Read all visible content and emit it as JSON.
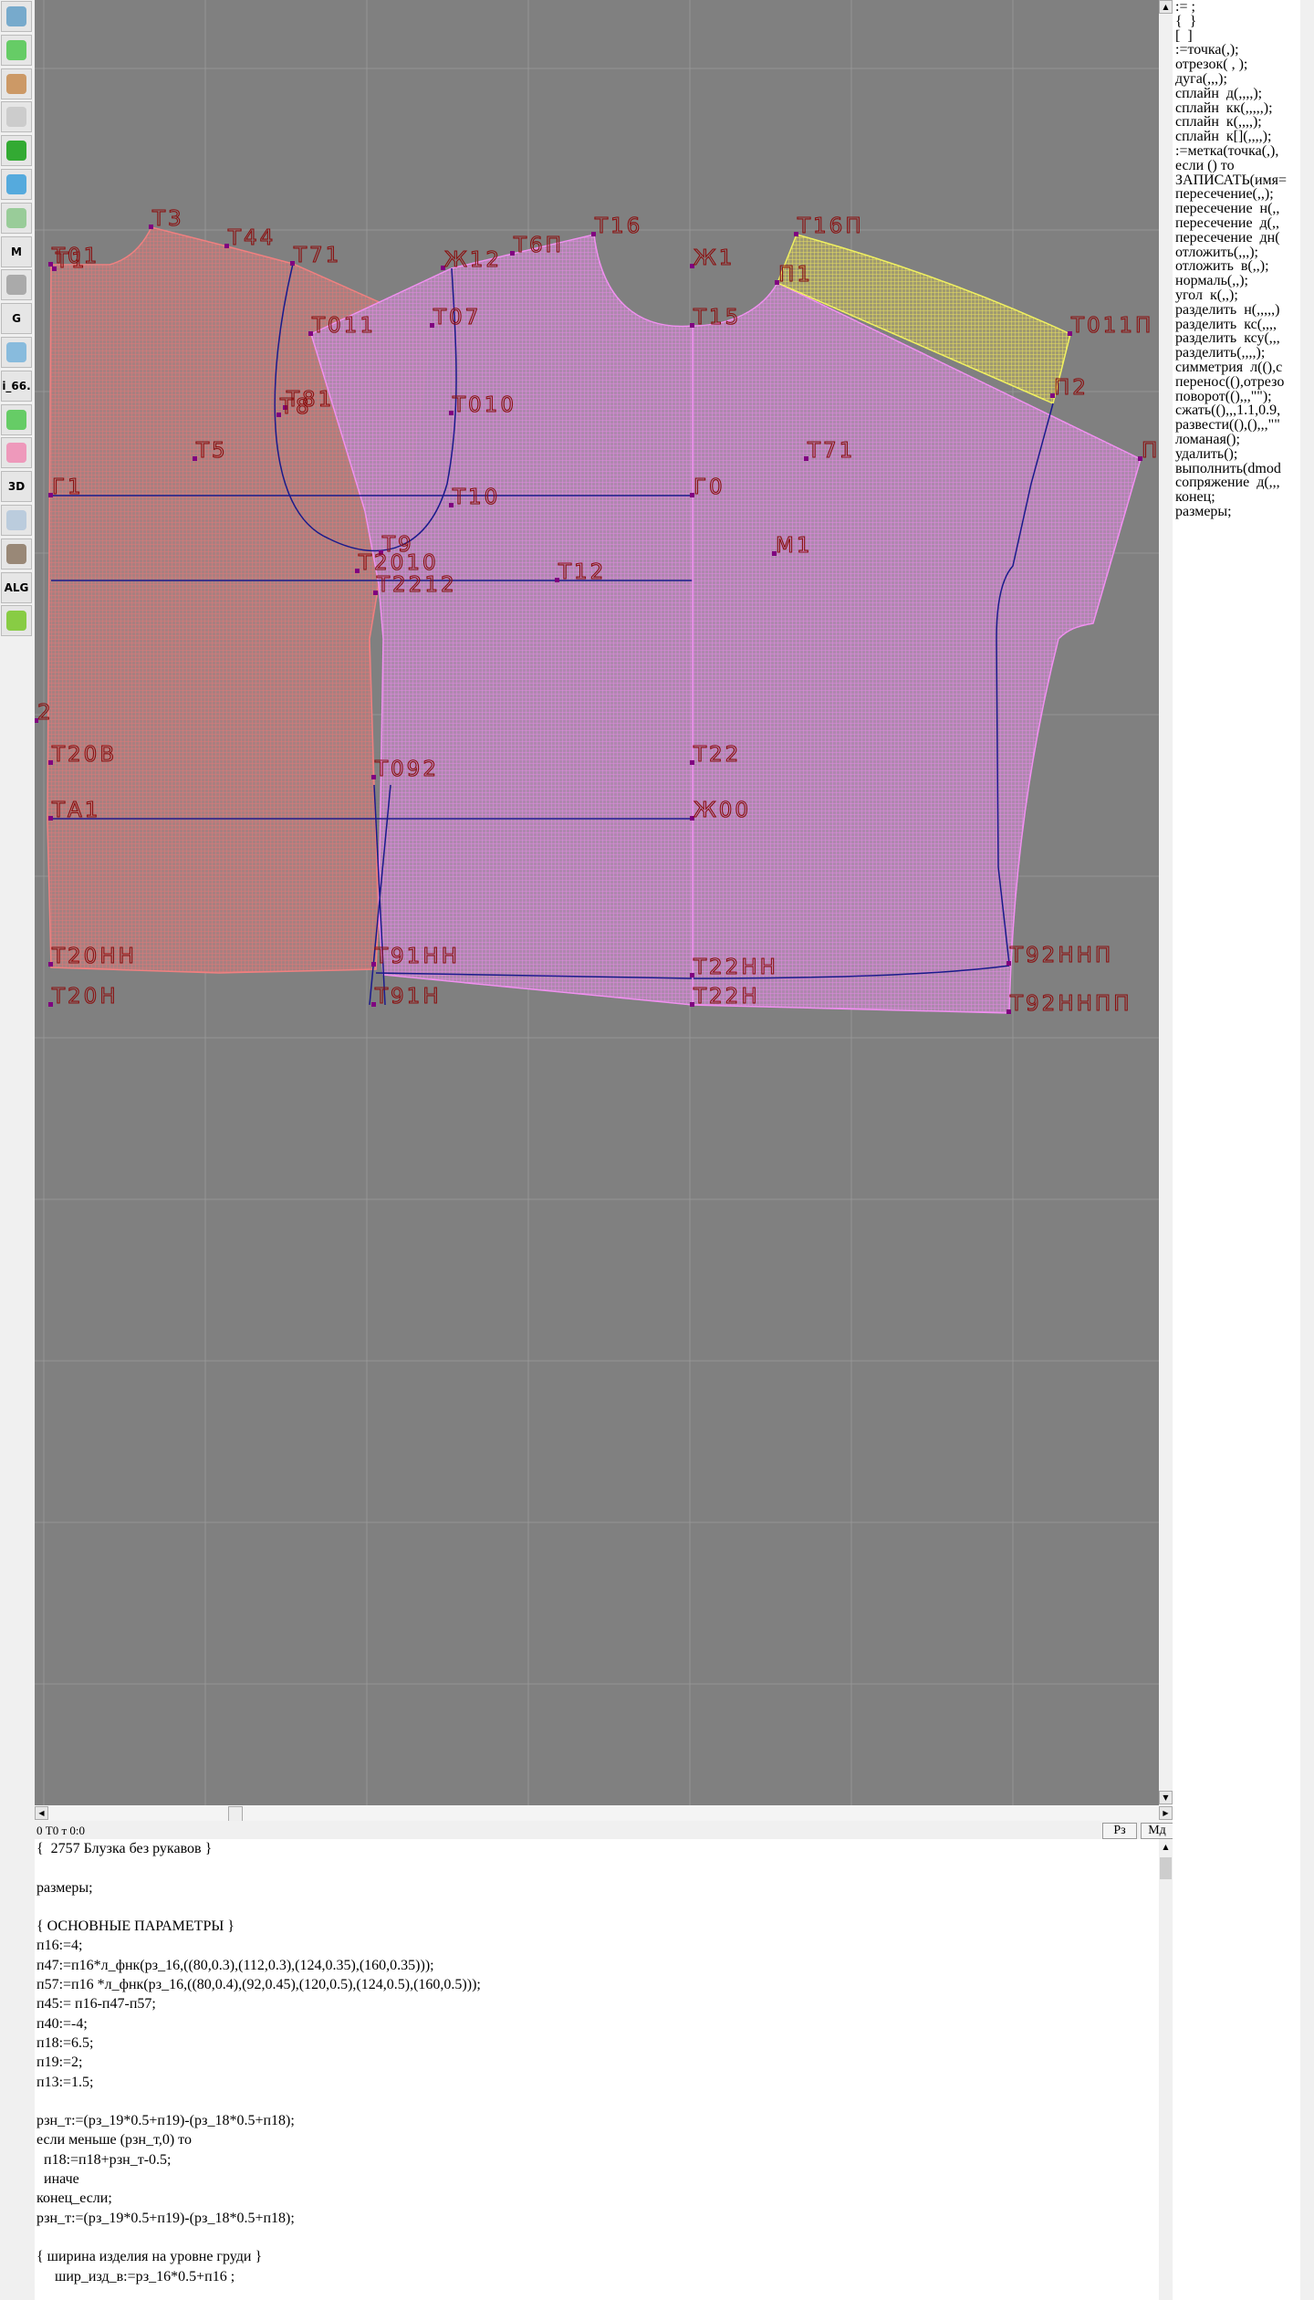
{
  "toolbar": {
    "items": [
      {
        "icon": "zoom-in-icon",
        "label": ""
      },
      {
        "icon": "zoom-out-icon",
        "label": ""
      },
      {
        "icon": "pattern-pieces-icon",
        "label": ""
      },
      {
        "icon": "grid-icon",
        "label": ""
      },
      {
        "icon": "segment-icon",
        "label": ""
      },
      {
        "icon": "layout-icon",
        "label": ""
      },
      {
        "icon": "outline-icon",
        "label": ""
      },
      {
        "icon": "model-icon",
        "label": "M"
      },
      {
        "icon": "compass-icon",
        "label": ""
      },
      {
        "icon": "grading-icon",
        "label": "G"
      },
      {
        "icon": "ruler-icon",
        "label": ""
      },
      {
        "icon": "measurements-icon",
        "label": "i_66."
      },
      {
        "icon": "table-icon",
        "label": ""
      },
      {
        "icon": "portrait-icon",
        "label": ""
      },
      {
        "icon": "3d-icon",
        "label": "3D"
      },
      {
        "icon": "list-icon",
        "label": ""
      },
      {
        "icon": "books-icon",
        "label": ""
      },
      {
        "icon": "algorithm-icon",
        "label": "ALG"
      },
      {
        "icon": "exit-arrow-icon",
        "label": ""
      }
    ]
  },
  "canvas": {
    "colors": {
      "background": "#808080",
      "back_piece": "#e07878",
      "front_piece": "#e68ae6",
      "yoke": "#e8e060",
      "construction": "#1a1a8c",
      "labels": "#8b1010"
    },
    "labels": [
      "Т01",
      "Т1",
      "Т3",
      "Т44",
      "Т71",
      "Т011",
      "Т07",
      "Т81",
      "Т8",
      "Т5",
      "Г1",
      "Т010",
      "Т10",
      "Т9",
      "Т2010",
      "Т2212",
      "Т12",
      "Ж12",
      "Т6П",
      "Т16",
      "Ж1",
      "Т16П",
      "П1",
      "Т15",
      "Т011П",
      "П2",
      "П",
      "Т71",
      "Г0",
      "М1",
      "2",
      "Т20В",
      "Т092",
      "Т22",
      "ТА1",
      "Ж00",
      "Т20НН",
      "Т91НН",
      "Т22НН",
      "Т92ННП",
      "Т20Н",
      "Т91Н",
      "Т22Н",
      "Т92ННПП"
    ]
  },
  "status": {
    "text": "0  Т0 т 0:0",
    "btn_rz": "Рз",
    "btn_md": "Мд"
  },
  "editor": {
    "lines": [
      "{  2757 Блузка без рукавов }",
      "",
      "размеры;",
      "",
      "{ ОСНОВНЫЕ ПАРАМЕТРЫ }",
      "п16:=4;",
      "п47:=п16*л_фнк(рз_16,((80,0.3),(112,0.3),(124,0.35),(160,0.35)));",
      "п57:=п16 *л_фнк(рз_16,((80,0.4),(92,0.45),(120,0.5),(124,0.5),(160,0.5)));",
      "п45:= п16-п47-п57;",
      "п40:=-4;",
      "п18:=6.5;",
      "п19:=2;",
      "п13:=1.5;",
      "",
      "рзн_т:=(рз_19*0.5+п19)-(рз_18*0.5+п18);",
      "если меньше (рзн_т,0) то",
      "  п18:=п18+рзн_т-0.5;",
      "  иначе",
      "конец_если;",
      "рзн_т:=(рз_19*0.5+п19)-(рз_18*0.5+п18);",
      "",
      "{ ширина изделия на уровне груди }",
      "     шир_изд_в:=рз_16*0.5+п16 ;"
    ]
  },
  "snippets": {
    "lines": [
      ":= ;",
      "{  }",
      "[  ]",
      ":=точка(,);",
      "отрезок( , );",
      "дуга(,,,);",
      "сплайн  д(,,,,);",
      "сплайн  кк(,,,,,);",
      "сплайн  к(,,,,);",
      "сплайн  к[](,,,,);",
      ":=метка(точка(,),",
      "если () то",
      "ЗАПИСАТЬ(имя=",
      "пересечение(,,);",
      "пересечение  н(,,",
      "пересечение  д(,,",
      "пересечение  дн(",
      "отложить(,,,);",
      "отложить  в(,,);",
      "нормаль(,,);",
      "угол  к(,,);",
      "разделить  н(,,,,,)",
      "разделить  кс(,,,,",
      "разделить  ксу(,,,",
      "разделить(,,,,);",
      "симметрия  л((),с",
      "перенос((),отрезо",
      "поворот((),,,\"\");",
      "сжать((),,,1.1,0.9,",
      "развести((),(),,,\"\"",
      "ломаная();",
      "удалить();",
      "выполнить(dmod",
      "сопряжение  д(,,,",
      "конец;",
      "размеры;"
    ]
  }
}
